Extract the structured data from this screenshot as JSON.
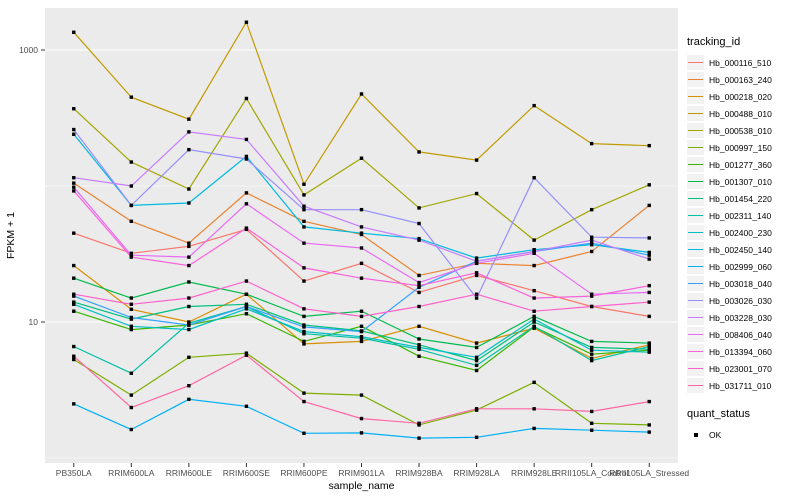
{
  "chart": {
    "y_axis": {
      "label": "FPKM + 1"
    },
    "x_axis": {
      "label": "sample_name"
    },
    "legend_tracking": {
      "title": "tracking_id"
    },
    "legend_quant": {
      "title": "quant_status",
      "items": [
        "OK"
      ]
    },
    "colors": {
      "panel_bg": "#EBEBEB",
      "grid": "#FFFFFF",
      "tick_text": "#4D4D4D",
      "point": "#000000"
    }
  },
  "chart_data": {
    "type": "line",
    "title": "",
    "xlabel": "sample_name",
    "ylabel": "FPKM + 1",
    "y_scale": "log10",
    "yticks": [
      1000,
      10
    ],
    "yticks_minor": [
      100,
      1
    ],
    "ylim": [
      1.05,
      2100
    ],
    "grid": true,
    "legend_position": "right",
    "point_status_legend": {
      "title": "quant_status",
      "value": "OK"
    },
    "categories": [
      "PB350LA",
      "RRIM600LA",
      "RRIM600LE",
      "RRIM600SE",
      "RRIM600PE",
      "RRIM901LA",
      "RRIM928BA",
      "RRIM928LA",
      "RRIM928LE",
      "RRII105LA_Control",
      "RRII105LA_Stressed"
    ],
    "series": [
      {
        "name": "Hb_000116_510",
        "color": "#F8766D",
        "values": [
          45,
          32,
          36,
          48,
          20,
          27,
          16.5,
          22,
          17,
          13,
          11
        ]
      },
      {
        "name": "Hb_000163_240",
        "color": "#EA8331",
        "values": [
          105,
          55,
          38,
          89,
          55,
          44,
          22,
          27,
          26,
          33,
          72
        ]
      },
      {
        "name": "Hb_000218_020",
        "color": "#D89000",
        "values": [
          26,
          12.4,
          10,
          16,
          6.9,
          7.2,
          9.3,
          7,
          9,
          5.4,
          6.8
        ]
      },
      {
        "name": "Hb_000488_010",
        "color": "#C09B00",
        "values": [
          1350,
          450,
          310,
          1600,
          103,
          475,
          178,
          155,
          390,
          205,
          198
        ]
      },
      {
        "name": "Hb_000538_010",
        "color": "#A3A500",
        "values": [
          370,
          150,
          95,
          440,
          86,
          160,
          69,
          88,
          40,
          67,
          102
        ]
      },
      {
        "name": "Hb_000997_150",
        "color": "#7CAE00",
        "values": [
          5.3,
          2.9,
          5.5,
          5.9,
          3.0,
          2.9,
          1.75,
          2.25,
          3.6,
          1.8,
          1.75
        ]
      },
      {
        "name": "Hb_001277_360",
        "color": "#39B600",
        "values": [
          12,
          8.8,
          9.5,
          11.5,
          7.2,
          9.3,
          5.6,
          4.4,
          9.2,
          5.8,
          6.2
        ]
      },
      {
        "name": "Hb_001307_010",
        "color": "#00BB4E",
        "values": [
          21,
          15,
          19.7,
          16,
          11,
          12,
          7.5,
          6.5,
          11,
          7.2,
          7.0
        ]
      },
      {
        "name": "Hb_001454_220",
        "color": "#00BF7D",
        "values": [
          14,
          10.5,
          13,
          13.5,
          9.5,
          8.6,
          6.8,
          5.2,
          10,
          6.5,
          6.3
        ]
      },
      {
        "name": "Hb_002311_140",
        "color": "#00C1A3",
        "values": [
          6.6,
          4.2,
          9.8,
          13,
          8.2,
          7.6,
          6.3,
          4.8,
          9.3,
          5.2,
          6.6
        ]
      },
      {
        "name": "Hb_002400_230",
        "color": "#00BFC4",
        "values": [
          13.5,
          9.3,
          8.8,
          12.5,
          8.5,
          7.8,
          6.5,
          5.5,
          10.5,
          6.2,
          6.0
        ]
      },
      {
        "name": "Hb_002450_140",
        "color": "#00BAE0",
        "values": [
          240,
          72,
          75,
          165,
          50,
          45,
          41,
          29.5,
          34,
          37,
          32.5
        ]
      },
      {
        "name": "Hb_002999_060",
        "color": "#00B0F6",
        "values": [
          2.5,
          1.62,
          2.7,
          2.4,
          1.52,
          1.53,
          1.4,
          1.42,
          1.65,
          1.6,
          1.55
        ]
      },
      {
        "name": "Hb_003018_040",
        "color": "#35A2FF",
        "values": [
          15.5,
          10.8,
          9.5,
          13,
          9.2,
          8.5,
          18,
          28,
          33,
          38,
          31
        ]
      },
      {
        "name": "Hb_003026_030",
        "color": "#9590FF",
        "values": [
          260,
          72,
          185,
          158,
          67,
          67,
          53,
          15,
          115,
          42,
          41.5
        ]
      },
      {
        "name": "Hb_003228_030",
        "color": "#C77CFF",
        "values": [
          115,
          100,
          250,
          220,
          71,
          50,
          40,
          28,
          33,
          40,
          29
        ]
      },
      {
        "name": "Hb_008406_040",
        "color": "#E76BF3",
        "values": [
          98,
          31,
          30,
          74,
          38,
          35,
          19.5,
          27,
          32,
          16,
          16.5
        ]
      },
      {
        "name": "Hb_013394_060",
        "color": "#FA62DB",
        "values": [
          92,
          30,
          26,
          49,
          25,
          21,
          18.5,
          23,
          15,
          15.5,
          18.5
        ]
      },
      {
        "name": "Hb_023001_070",
        "color": "#FF61CC",
        "values": [
          16,
          13.5,
          15,
          20,
          12.5,
          11,
          13,
          16,
          12,
          13,
          14
        ]
      },
      {
        "name": "Hb_031711_010",
        "color": "#FF67A4",
        "values": [
          5.6,
          2.35,
          3.4,
          5.7,
          2.6,
          1.95,
          1.8,
          2.3,
          2.3,
          2.2,
          2.6
        ]
      }
    ]
  }
}
